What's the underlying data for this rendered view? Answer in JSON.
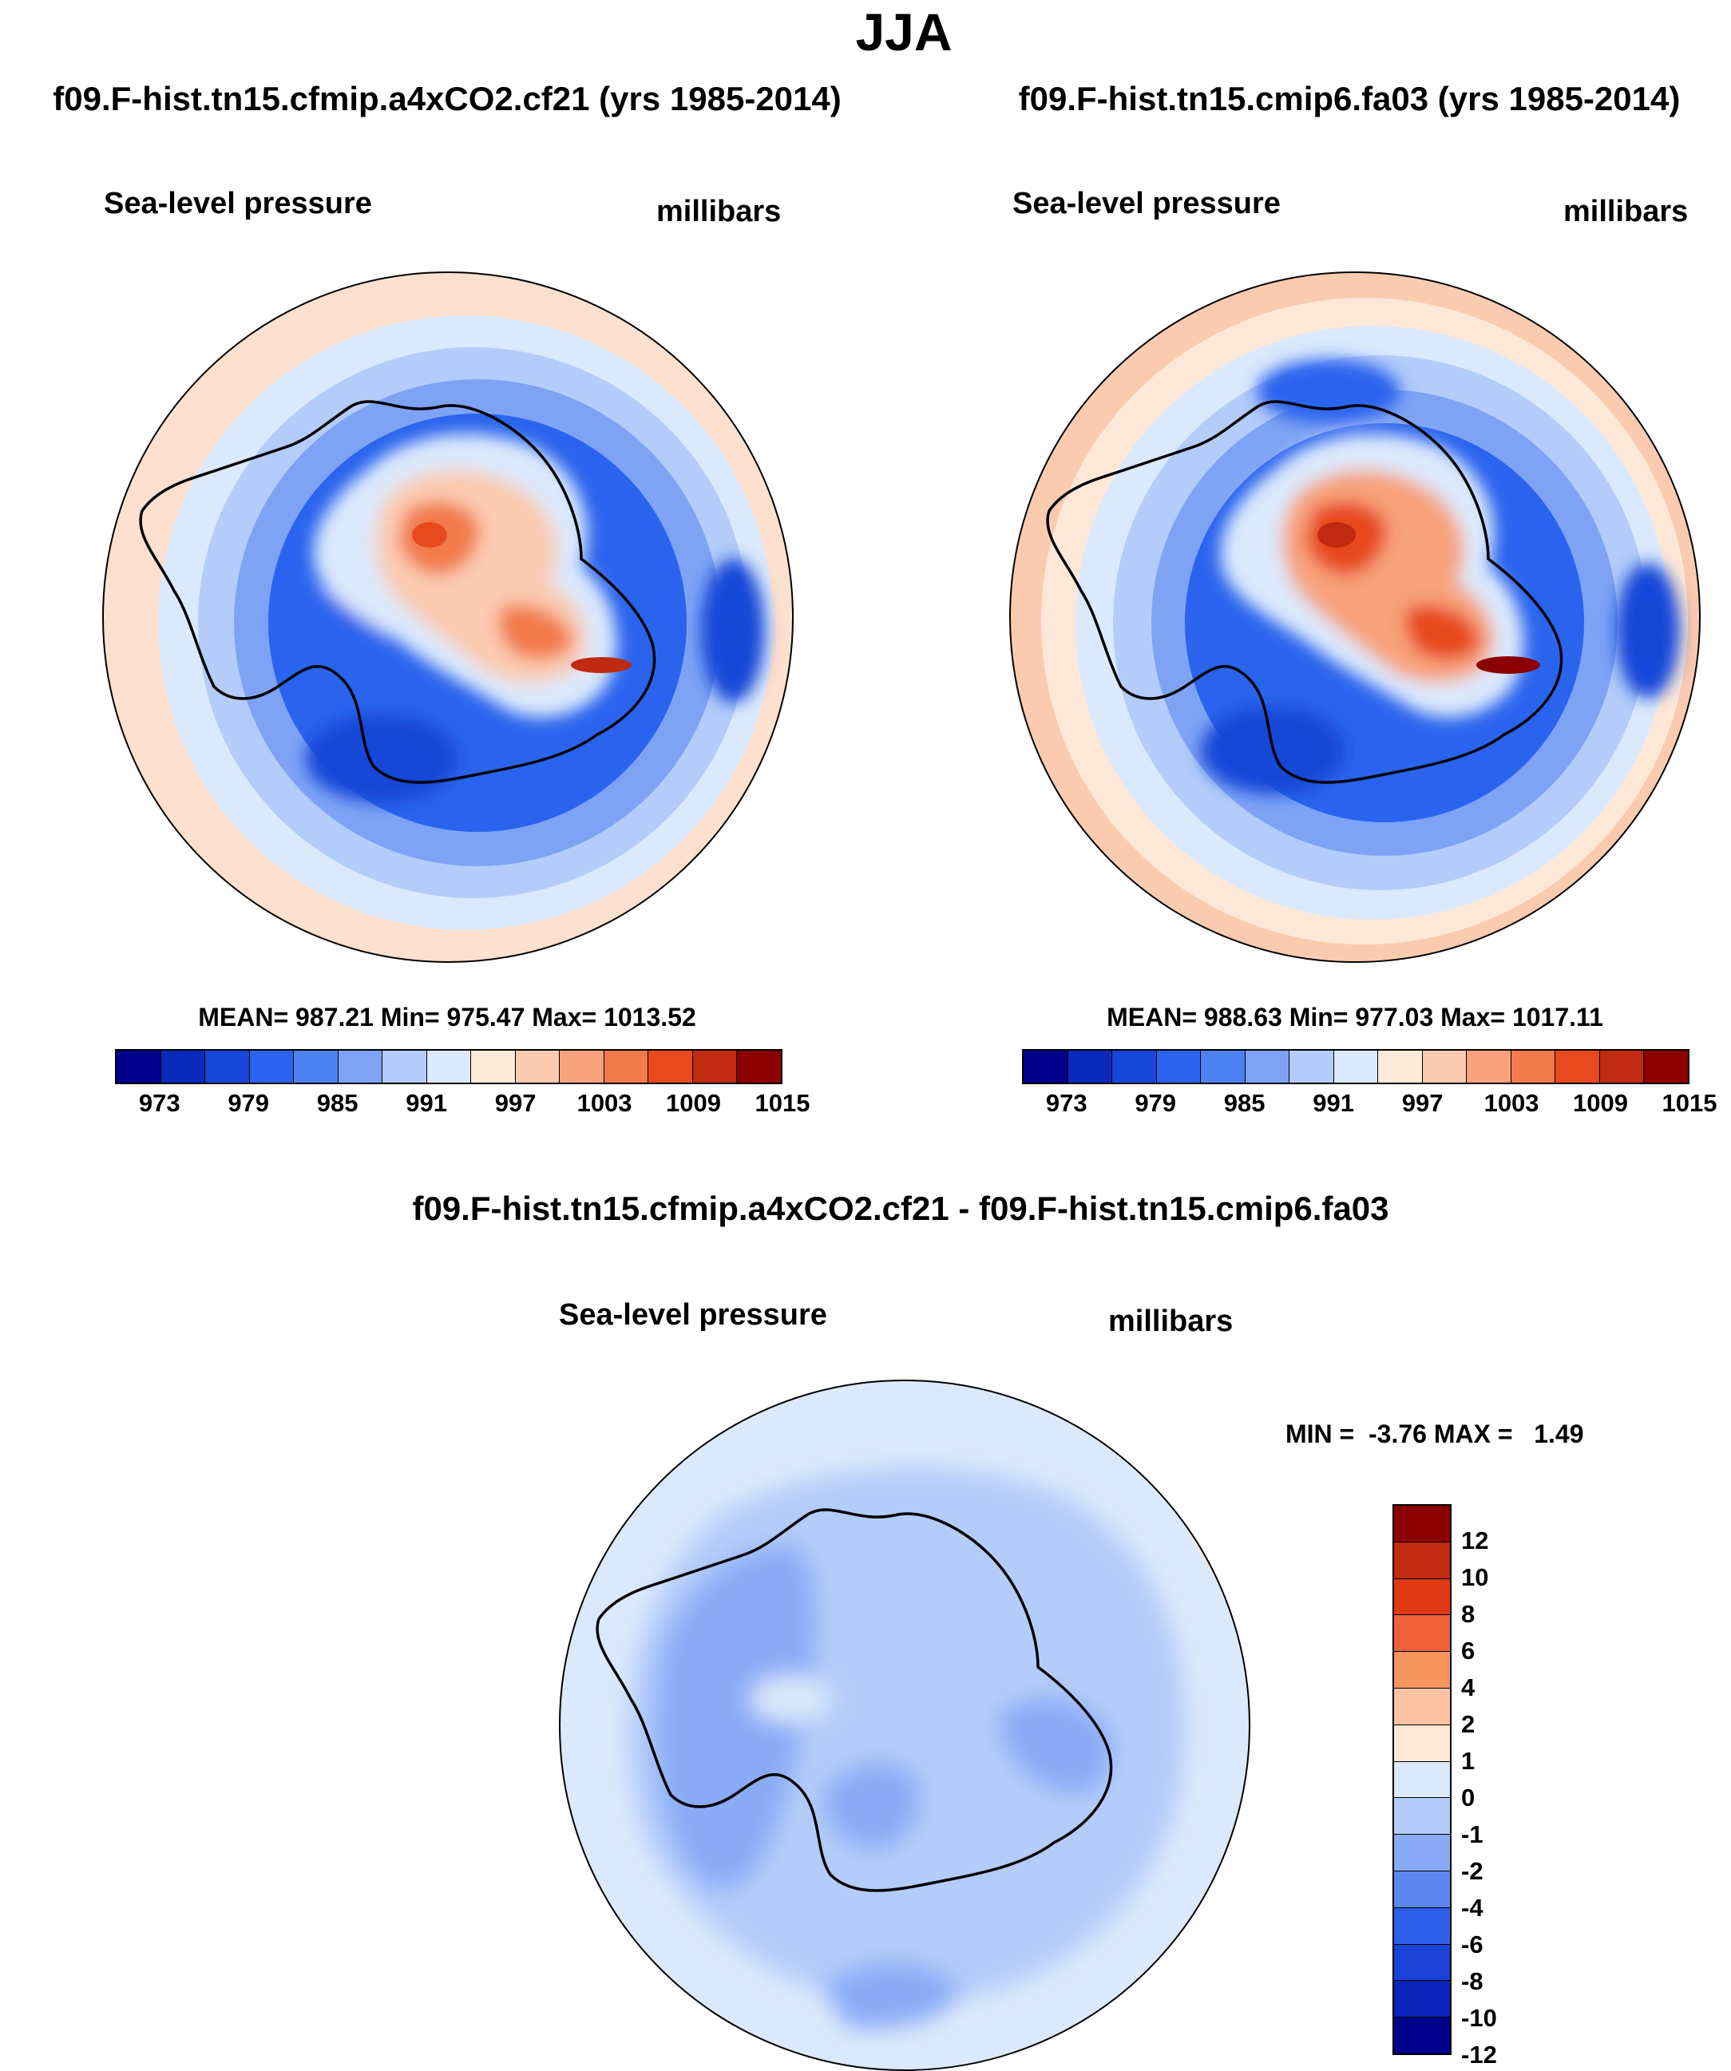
{
  "page": {
    "title": "JJA"
  },
  "panels": {
    "left": {
      "case_title": "f09.F-hist.tn15.cfmip.a4xCO2.cf21 (yrs 1985-2014)",
      "variable": "Sea-level pressure",
      "units": "millibars",
      "stats": "MEAN= 987.21  Min= 975.47  Max= 1013.52",
      "stats_values": {
        "mean": 987.21,
        "min": 975.47,
        "max": 1013.52
      }
    },
    "right": {
      "case_title": "f09.F-hist.tn15.cmip6.fa03 (yrs 1985-2014)",
      "variable": "Sea-level pressure",
      "units": "millibars",
      "stats": "MEAN= 988.63  Min= 977.03  Max= 1017.11",
      "stats_values": {
        "mean": 988.63,
        "min": 977.03,
        "max": 1017.11
      }
    },
    "diff": {
      "case_title": "f09.F-hist.tn15.cfmip.a4xCO2.cf21 - f09.F-hist.tn15.cmip6.fa03",
      "variable": "Sea-level pressure",
      "units": "millibars",
      "stats": "MIN =  -3.76 MAX =   1.49",
      "stats_values": {
        "min": -3.76,
        "max": 1.49
      }
    }
  },
  "colorbar_abs": {
    "colors": [
      "#00008b",
      "#0a2abb",
      "#1746d8",
      "#2a64ee",
      "#4d82f2",
      "#7ea3f5",
      "#b3ccf9",
      "#dbe9fc",
      "#fdeadb",
      "#fbcbb0",
      "#f7a27a",
      "#f27a4c",
      "#e84a1e",
      "#bf2a10",
      "#8b0000"
    ],
    "tick_labels": [
      "973",
      "979",
      "985",
      "991",
      "997",
      "1003",
      "1009",
      "1015"
    ]
  },
  "colorbar_diff": {
    "colors": [
      "#8b0000",
      "#bf2a10",
      "#e03a12",
      "#f2623a",
      "#f7955f",
      "#fbc3a3",
      "#fde8d8",
      "#dbe9fc",
      "#b3ccf9",
      "#8aaaf6",
      "#5c86f0",
      "#2e5fea",
      "#1a42d6",
      "#0c22b8",
      "#00008b"
    ],
    "tick_labels": [
      "12",
      "10",
      "8",
      "6",
      "4",
      "2",
      "1",
      "0",
      "-1",
      "-2",
      "-4",
      "-6",
      "-8",
      "-10",
      "-12"
    ]
  },
  "colors": {
    "coastline": "#000000",
    "background": "#ffffff"
  }
}
